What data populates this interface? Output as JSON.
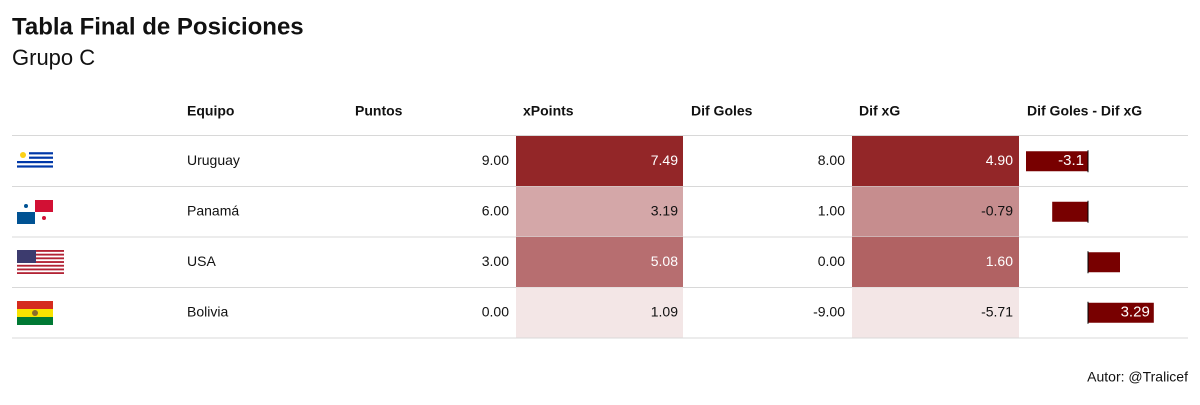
{
  "header": {
    "title": "Tabla Final de Posiciones",
    "subtitle": "Grupo C"
  },
  "table": {
    "columns": [
      "Equipo",
      "Puntos",
      "xPoints",
      "Dif Goles",
      "Dif xG",
      "Dif Goles - Dif xG"
    ],
    "shade_colors": [
      "#f3e6e6",
      "#932628"
    ],
    "bar_color": "#780000",
    "rows": [
      {
        "equipo": "Uruguay",
        "puntos": "9.00",
        "xpoints": "7.49",
        "dif_goles": "8.00",
        "dif_xg": "4.90",
        "bar": {
          "value": -3.1,
          "label": "-3.1"
        }
      },
      {
        "equipo": "Panamá",
        "puntos": "6.00",
        "xpoints": "3.19",
        "dif_goles": "1.00",
        "dif_xg": "-0.79",
        "bar": {
          "value": -1.79
        }
      },
      {
        "equipo": "USA",
        "puntos": "3.00",
        "xpoints": "5.08",
        "dif_goles": "0.00",
        "dif_xg": "1.60",
        "bar": {
          "value": 1.6
        }
      },
      {
        "equipo": "Bolivia",
        "puntos": "0.00",
        "xpoints": "1.09",
        "dif_goles": "-9.00",
        "dif_xg": "-5.71",
        "bar": {
          "value": 3.29,
          "label": "3.29"
        }
      }
    ]
  },
  "footer": {
    "author": "Autor: @Tralicef"
  }
}
